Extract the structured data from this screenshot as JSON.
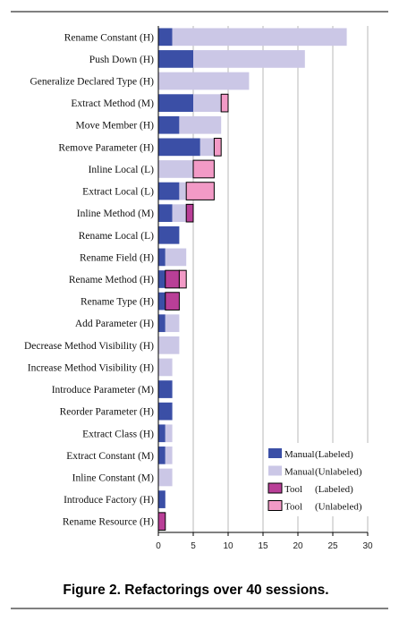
{
  "caption": "Figure 2. Refactorings over 40 sessions.",
  "colors": {
    "manual_labeled": "#3b4fa6",
    "manual_unlabeled": "#cbc7e6",
    "tool_labeled": "#b93f97",
    "tool_unlabeled": "#f29ac6",
    "gridline": "#b8b8b8",
    "axis": "#000000"
  },
  "chart_data": {
    "type": "bar",
    "orientation": "horizontal",
    "stacked": true,
    "title": "",
    "xlabel": "",
    "ylabel": "",
    "xlim": [
      0,
      30
    ],
    "x_ticks": [
      "0",
      "5",
      "10",
      "15",
      "20",
      "25",
      "30"
    ],
    "grid": "vertical",
    "legend_position": "bottom-right",
    "categories": [
      "Rename Constant (H)",
      "Push Down (H)",
      "Generalize Declared Type (H)",
      "Extract Method (M)",
      "Move Member (H)",
      "Remove Parameter (H)",
      "Inline Local (L)",
      "Extract Local (L)",
      "Inline Method (M)",
      "Rename Local (L)",
      "Rename Field (H)",
      "Rename Method (H)",
      "Rename Type (H)",
      "Add Parameter (H)",
      "Decrease Method Visibility (H)",
      "Increase Method Visibility (H)",
      "Introduce Parameter (M)",
      "Reorder Parameter (H)",
      "Extract Class (H)",
      "Extract Constant (M)",
      "Inline Constant (M)",
      "Introduce Factory (H)",
      "Rename Resource (H)"
    ],
    "series": [
      {
        "name": "Manual (Labeled)",
        "values": [
          2,
          5,
          0,
          5,
          3,
          6,
          0,
          3,
          2,
          3,
          1,
          1,
          1,
          1,
          0,
          0,
          2,
          2,
          1,
          1,
          0,
          1,
          0
        ]
      },
      {
        "name": "Manual (Unlabeled)",
        "values": [
          25,
          16,
          13,
          4,
          6,
          2,
          5,
          1,
          2,
          0,
          3,
          0,
          0,
          2,
          3,
          2,
          0,
          0,
          1,
          1,
          2,
          0,
          0
        ]
      },
      {
        "name": "Tool (Labeled)",
        "values": [
          0,
          0,
          0,
          0,
          0,
          0,
          0,
          0,
          1,
          0,
          0,
          2,
          2,
          0,
          0,
          0,
          0,
          0,
          0,
          0,
          0,
          0,
          1
        ]
      },
      {
        "name": "Tool (Unlabeled)",
        "values": [
          0,
          0,
          0,
          1,
          0,
          1,
          3,
          4,
          0,
          0,
          0,
          1,
          0,
          0,
          0,
          0,
          0,
          0,
          0,
          0,
          0,
          0,
          0
        ]
      }
    ]
  }
}
